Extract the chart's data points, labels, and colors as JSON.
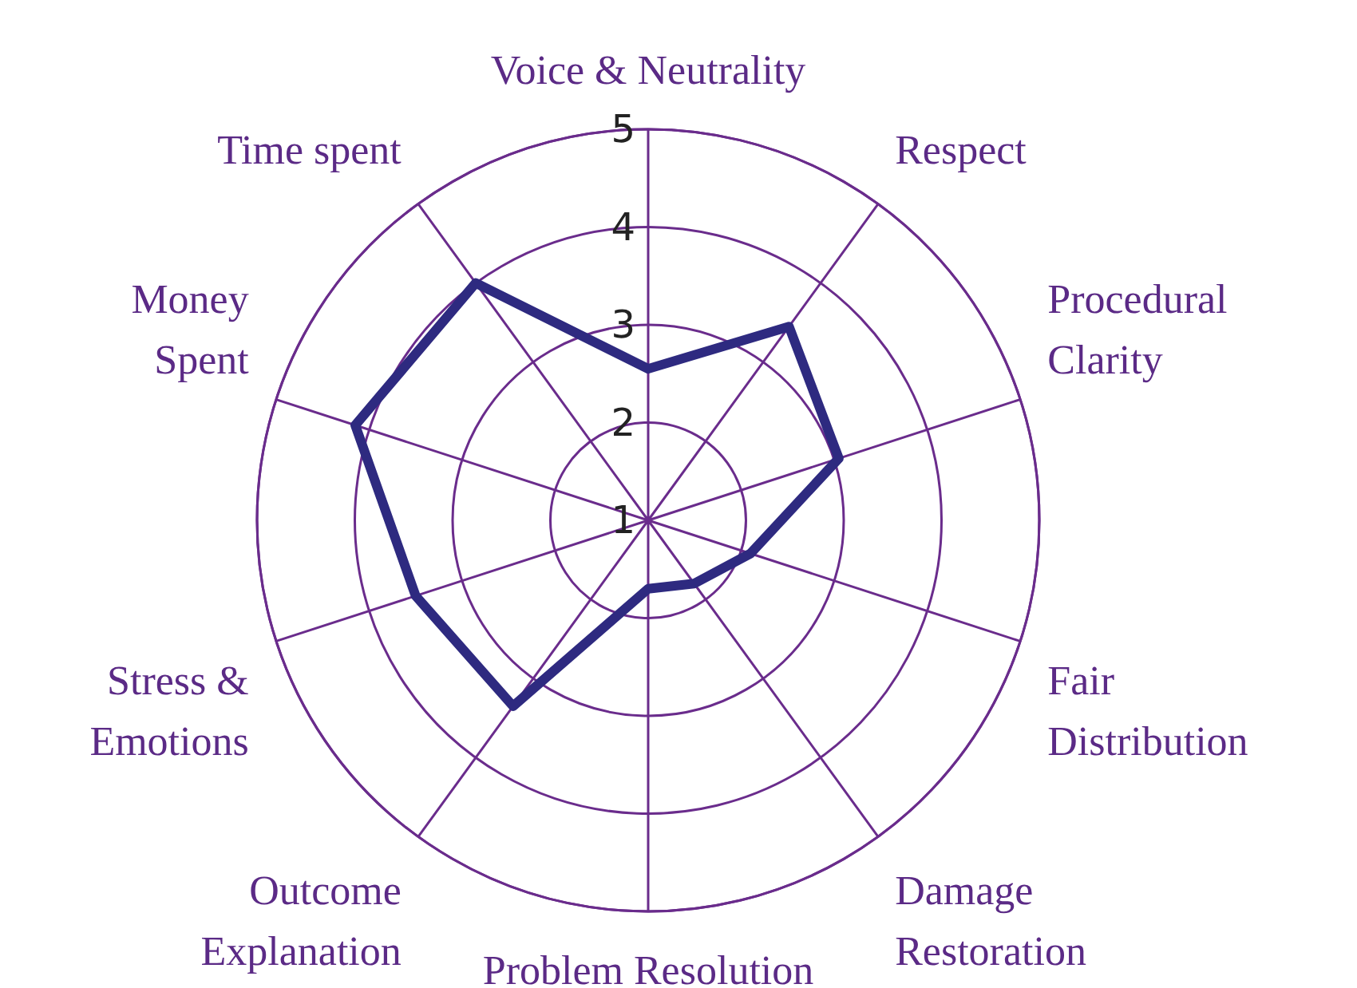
{
  "chart_data": {
    "type": "radar",
    "categories": [
      "Voice & Neutrality",
      "Respect",
      "Procedural Clarity",
      "Fair Distribution",
      "Damage Restoration",
      "Problem Resolution",
      "Outcome Explanation",
      "Stress & Emotions",
      "Money Spent",
      "Time spent"
    ],
    "series": [
      {
        "color": "#2e2a80",
        "values": [
          2.55,
          3.45,
          3.05,
          2.1,
          1.8,
          1.7,
          3.35,
          3.5,
          4.15,
          4.0
        ]
      }
    ],
    "ylim": [
      1,
      5
    ],
    "yticks": [
      1,
      2,
      3,
      4,
      5
    ],
    "marker": "none",
    "line_style": "solid"
  }
}
